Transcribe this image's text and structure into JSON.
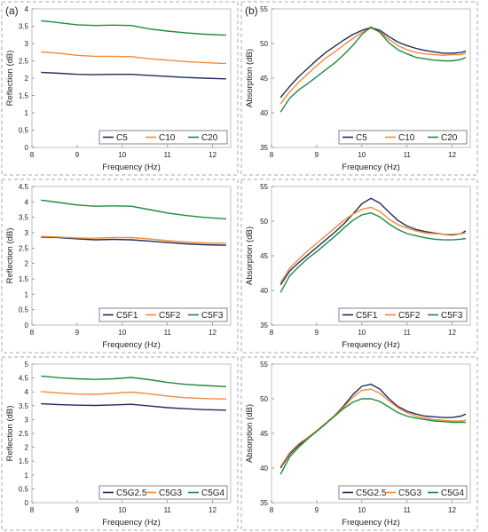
{
  "colors": {
    "C5": "#1f2d5c",
    "C10": "#f28a3a",
    "C20": "#1f8a3c",
    "frame": "#aaaaaa",
    "axis": "#bfbfbf"
  },
  "panel_labels": [
    "(a)",
    "(b)"
  ],
  "chart_data": [
    {
      "id": "reflection-c",
      "type": "line",
      "column": "a",
      "row": 0,
      "xlabel": "Frequency (Hz)",
      "ylabel": "Reflection (dB)",
      "xlim": [
        8,
        12.4
      ],
      "ylim": [
        0,
        4
      ],
      "xticks": [
        "8",
        "9",
        "10",
        "11",
        "12"
      ],
      "yticks": [
        "0",
        "0.5",
        "1",
        "1.5",
        "2",
        "2.5",
        "3",
        "3.5",
        "4"
      ],
      "legend": "bottom-right",
      "grid": false,
      "x": [
        8.2,
        8.6,
        9.0,
        9.4,
        9.8,
        10.2,
        10.6,
        11.0,
        11.4,
        11.8,
        12.3
      ],
      "series": [
        {
          "name": "C5",
          "color": "C5",
          "values": [
            2.17,
            2.14,
            2.11,
            2.1,
            2.11,
            2.11,
            2.08,
            2.05,
            2.02,
            2.0,
            1.98
          ]
        },
        {
          "name": "C10",
          "color": "C10",
          "values": [
            2.76,
            2.72,
            2.66,
            2.63,
            2.63,
            2.62,
            2.56,
            2.52,
            2.48,
            2.45,
            2.42
          ]
        },
        {
          "name": "C20",
          "color": "C20",
          "values": [
            3.66,
            3.6,
            3.54,
            3.52,
            3.53,
            3.52,
            3.42,
            3.36,
            3.31,
            3.27,
            3.24
          ]
        }
      ]
    },
    {
      "id": "absorption-c",
      "type": "line",
      "column": "b",
      "row": 0,
      "xlabel": "Frequency (Hz)",
      "ylabel": "Absorption (dB)",
      "xlim": [
        8,
        12.4
      ],
      "ylim": [
        35,
        55
      ],
      "xticks": [
        "8",
        "9",
        "10",
        "11",
        "12"
      ],
      "yticks": [
        "35",
        "40",
        "45",
        "50",
        "55"
      ],
      "legend": "bottom-right",
      "grid": false,
      "x": [
        8.2,
        8.4,
        8.6,
        8.8,
        9.0,
        9.2,
        9.4,
        9.6,
        9.8,
        10.0,
        10.2,
        10.4,
        10.6,
        10.8,
        11.0,
        11.2,
        11.4,
        11.6,
        11.8,
        12.0,
        12.2,
        12.3
      ],
      "series": [
        {
          "name": "C5",
          "color": "C5",
          "values": [
            42.2,
            43.8,
            45.2,
            46.4,
            47.6,
            48.7,
            49.6,
            50.5,
            51.3,
            51.9,
            52.3,
            51.9,
            51.0,
            50.2,
            49.7,
            49.3,
            49.0,
            48.8,
            48.6,
            48.6,
            48.7,
            48.9
          ]
        },
        {
          "name": "C10",
          "color": "C10",
          "values": [
            41.3,
            43.0,
            44.4,
            45.6,
            46.8,
            47.9,
            48.8,
            49.8,
            50.7,
            51.6,
            52.2,
            51.7,
            50.6,
            49.7,
            49.1,
            48.7,
            48.5,
            48.4,
            48.3,
            48.4,
            48.4,
            48.6
          ]
        },
        {
          "name": "C20",
          "color": "C20",
          "values": [
            40.1,
            42.1,
            43.3,
            44.2,
            45.2,
            46.2,
            47.2,
            48.4,
            49.7,
            51.3,
            52.4,
            51.6,
            50.1,
            49.1,
            48.5,
            48.0,
            47.8,
            47.6,
            47.5,
            47.5,
            47.7,
            48.0
          ]
        }
      ]
    },
    {
      "id": "reflection-f",
      "type": "line",
      "column": "a",
      "row": 1,
      "xlabel": "Frequency (Hz)",
      "ylabel": "Reflection (dB)",
      "xlim": [
        8,
        12.4
      ],
      "ylim": [
        0,
        4.5
      ],
      "xticks": [
        "8",
        "9",
        "10",
        "11",
        "12"
      ],
      "yticks": [
        "0",
        "0.5",
        "1",
        "1.5",
        "2",
        "2.5",
        "3",
        "3.5",
        "4",
        "4.5"
      ],
      "legend": "bottom-right",
      "grid": false,
      "x": [
        8.2,
        8.6,
        9.0,
        9.4,
        9.8,
        10.2,
        10.6,
        11.0,
        11.4,
        11.8,
        12.3
      ],
      "series": [
        {
          "name": "C5F1",
          "color": "C5",
          "values": [
            2.86,
            2.84,
            2.8,
            2.77,
            2.78,
            2.77,
            2.73,
            2.68,
            2.64,
            2.61,
            2.59
          ]
        },
        {
          "name": "C5F2",
          "color": "C10",
          "values": [
            2.88,
            2.86,
            2.83,
            2.82,
            2.84,
            2.84,
            2.8,
            2.74,
            2.7,
            2.67,
            2.65
          ]
        },
        {
          "name": "C5F3",
          "color": "C20",
          "values": [
            4.06,
            3.98,
            3.9,
            3.86,
            3.87,
            3.86,
            3.75,
            3.64,
            3.56,
            3.5,
            3.45
          ]
        }
      ]
    },
    {
      "id": "absorption-f",
      "type": "line",
      "column": "b",
      "row": 1,
      "xlabel": "Frequency (Hz)",
      "ylabel": "Absorption (dB)",
      "xlim": [
        8,
        12.4
      ],
      "ylim": [
        35,
        55
      ],
      "xticks": [
        "8",
        "9",
        "10",
        "11",
        "12"
      ],
      "yticks": [
        "35",
        "40",
        "45",
        "50",
        "55"
      ],
      "legend": "bottom-right",
      "grid": false,
      "x": [
        8.2,
        8.4,
        8.6,
        8.8,
        9.0,
        9.2,
        9.4,
        9.6,
        9.8,
        10.0,
        10.2,
        10.4,
        10.6,
        10.8,
        11.0,
        11.2,
        11.4,
        11.6,
        11.8,
        12.0,
        12.2,
        12.3
      ],
      "series": [
        {
          "name": "C5F1",
          "color": "C5",
          "values": [
            40.8,
            42.8,
            44.0,
            45.1,
            46.2,
            47.3,
            48.4,
            49.6,
            51.0,
            52.5,
            53.3,
            52.6,
            51.3,
            50.1,
            49.3,
            48.8,
            48.5,
            48.3,
            48.1,
            48.0,
            48.2,
            48.6
          ]
        },
        {
          "name": "C5F2",
          "color": "C10",
          "values": [
            41.1,
            43.2,
            44.5,
            45.7,
            46.8,
            47.9,
            49.0,
            50.1,
            51.0,
            51.7,
            52.0,
            51.4,
            50.3,
            49.5,
            49.0,
            48.6,
            48.3,
            48.2,
            48.1,
            48.1,
            48.2,
            48.3
          ]
        },
        {
          "name": "C5F3",
          "color": "C20",
          "values": [
            39.7,
            42.1,
            43.4,
            44.6,
            45.6,
            46.7,
            47.8,
            49.0,
            50.1,
            50.9,
            51.2,
            50.6,
            49.6,
            48.8,
            48.2,
            47.9,
            47.6,
            47.4,
            47.3,
            47.3,
            47.4,
            47.5
          ]
        }
      ]
    },
    {
      "id": "reflection-g",
      "type": "line",
      "column": "a",
      "row": 2,
      "xlabel": "Frequency (Hz)",
      "ylabel": "Reflection (dB)",
      "xlim": [
        8,
        12.4
      ],
      "ylim": [
        0,
        5
      ],
      "xticks": [
        "8",
        "9",
        "10",
        "11",
        "12"
      ],
      "yticks": [
        "0",
        "0.5",
        "1",
        "1.5",
        "2",
        "2.5",
        "3",
        "3.5",
        "4",
        "4.5",
        "5"
      ],
      "legend": "bottom-right",
      "grid": false,
      "x": [
        8.2,
        8.6,
        9.0,
        9.4,
        9.8,
        10.2,
        10.6,
        11.0,
        11.4,
        11.8,
        12.3
      ],
      "series": [
        {
          "name": "C5G2.5",
          "color": "C5",
          "values": [
            3.57,
            3.54,
            3.52,
            3.51,
            3.53,
            3.55,
            3.49,
            3.43,
            3.39,
            3.36,
            3.34
          ]
        },
        {
          "name": "C5G3",
          "color": "C10",
          "values": [
            4.01,
            3.96,
            3.92,
            3.91,
            3.95,
            3.99,
            3.93,
            3.85,
            3.79,
            3.76,
            3.74
          ]
        },
        {
          "name": "C5G4",
          "color": "C20",
          "values": [
            4.57,
            4.51,
            4.47,
            4.45,
            4.47,
            4.52,
            4.44,
            4.34,
            4.27,
            4.23,
            4.19
          ]
        }
      ]
    },
    {
      "id": "absorption-g",
      "type": "line",
      "column": "b",
      "row": 2,
      "xlabel": "Frequency (Hz)",
      "ylabel": "Absorption (dB)",
      "xlim": [
        8,
        12.4
      ],
      "ylim": [
        35,
        55
      ],
      "xticks": [
        "8",
        "9",
        "10",
        "11",
        "12"
      ],
      "yticks": [
        "35",
        "40",
        "45",
        "50",
        "55"
      ],
      "legend": "bottom-right",
      "grid": false,
      "x": [
        8.2,
        8.4,
        8.6,
        8.8,
        9.0,
        9.2,
        9.4,
        9.6,
        9.8,
        10.0,
        10.2,
        10.4,
        10.6,
        10.8,
        11.0,
        11.2,
        11.4,
        11.6,
        11.8,
        12.0,
        12.2,
        12.3
      ],
      "series": [
        {
          "name": "C5G2.5",
          "color": "C5",
          "values": [
            40.0,
            42.0,
            43.3,
            44.3,
            45.3,
            46.4,
            47.6,
            49.0,
            50.6,
            51.8,
            52.1,
            51.4,
            50.0,
            48.9,
            48.2,
            47.8,
            47.5,
            47.4,
            47.3,
            47.3,
            47.5,
            47.8
          ]
        },
        {
          "name": "C5G3",
          "color": "C10",
          "values": [
            40.2,
            42.2,
            43.5,
            44.4,
            45.4,
            46.5,
            47.6,
            48.8,
            50.2,
            51.2,
            51.4,
            50.8,
            49.7,
            48.7,
            48.0,
            47.5,
            47.2,
            47.0,
            46.9,
            46.8,
            46.8,
            46.9
          ]
        },
        {
          "name": "C5G4",
          "color": "C20",
          "values": [
            39.1,
            41.6,
            43.0,
            44.2,
            45.3,
            46.4,
            47.5,
            48.6,
            49.5,
            50.0,
            50.0,
            49.6,
            48.8,
            48.0,
            47.5,
            47.2,
            47.0,
            46.8,
            46.7,
            46.6,
            46.6,
            46.6
          ]
        }
      ]
    }
  ]
}
